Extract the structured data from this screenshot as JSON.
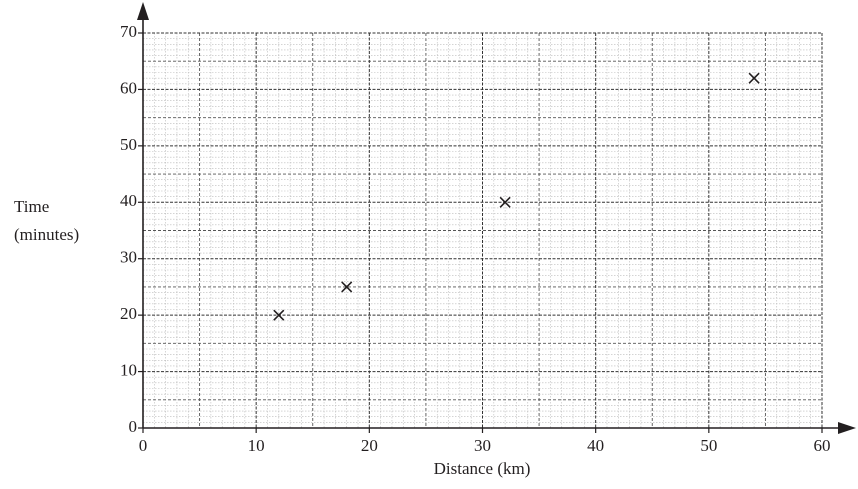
{
  "chart_data": {
    "type": "scatter",
    "xlabel": "Distance (km)",
    "ylabel": [
      "Time",
      "(minutes)"
    ],
    "x": [
      12,
      18,
      32,
      54
    ],
    "values": [
      20,
      25,
      40,
      62
    ],
    "color": "#231f20",
    "marker": "x",
    "xlim": [
      0,
      60
    ],
    "xticks": [
      0,
      10,
      20,
      30,
      40,
      50,
      60
    ],
    "ylim": [
      0,
      70
    ],
    "yticks": [
      0,
      10,
      20,
      30,
      40,
      50,
      60,
      70
    ],
    "grid": true
  }
}
